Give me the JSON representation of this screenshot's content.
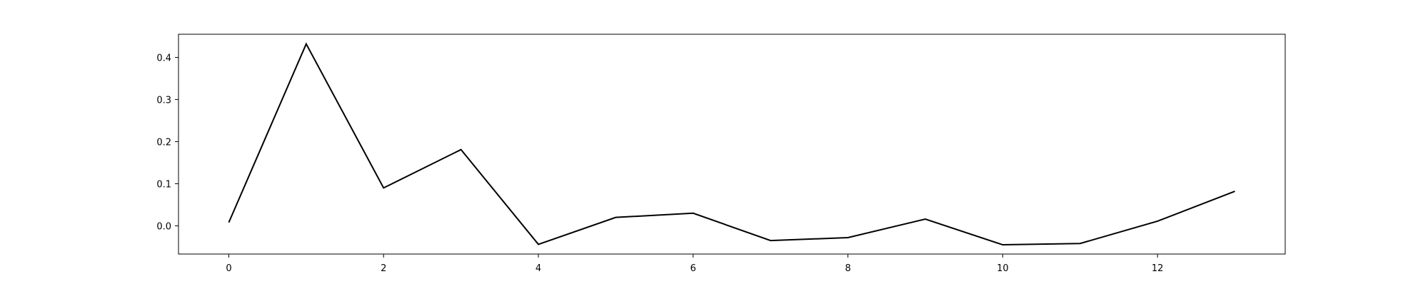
{
  "chart_data": {
    "type": "line",
    "title": "",
    "xlabel": "",
    "ylabel": "",
    "x": [
      0,
      1,
      2,
      3,
      4,
      5,
      6,
      7,
      8,
      9,
      10,
      11,
      12,
      13
    ],
    "series": [
      {
        "values": [
          0.008,
          0.432,
          0.09,
          0.181,
          -0.044,
          0.02,
          0.03,
          -0.035,
          -0.028,
          0.016,
          -0.045,
          -0.042,
          0.011,
          0.082
        ]
      }
    ],
    "xticks": [
      0,
      2,
      4,
      6,
      8,
      10,
      12
    ],
    "xtick_labels": [
      "0",
      "2",
      "4",
      "6",
      "8",
      "10",
      "12"
    ],
    "yticks": [
      0.0,
      0.1,
      0.2,
      0.3,
      0.4
    ],
    "ytick_labels": [
      "0.0",
      "0.1",
      "0.2",
      "0.3",
      "0.4"
    ],
    "xlim": [
      -0.65,
      13.65
    ],
    "ylim": [
      -0.067,
      0.455
    ],
    "grid": false,
    "line_color": "#000000"
  }
}
